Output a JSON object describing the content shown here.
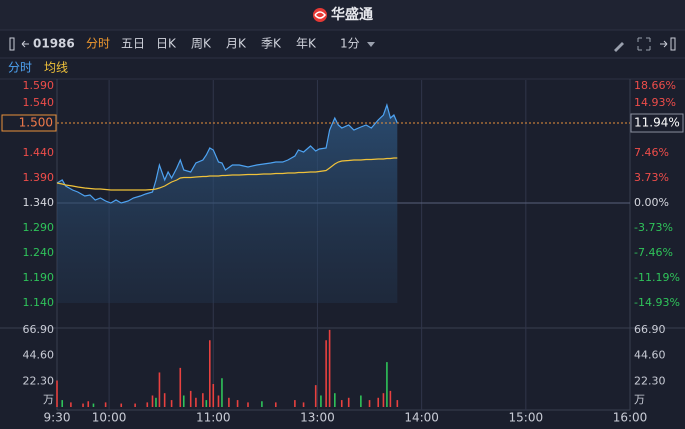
{
  "header": {
    "title": "华盛通"
  },
  "toolbar": {
    "code": "01986",
    "tabs": [
      "分时",
      "五日",
      "日K",
      "周K",
      "月K",
      "季K",
      "年K"
    ],
    "interval": "1分"
  },
  "chart_data": {
    "type": "line",
    "x": [
      0,
      3,
      5,
      9,
      12,
      16,
      19,
      22,
      25,
      28,
      31,
      34,
      37,
      41,
      44,
      48,
      51,
      55,
      57,
      59,
      62,
      64,
      66,
      69,
      71,
      73,
      77,
      80,
      84,
      86,
      88,
      90,
      93,
      95,
      97,
      101,
      105,
      110,
      115,
      119,
      123,
      126,
      130,
      133,
      137,
      139,
      142,
      146,
      149,
      151,
      155,
      157,
      160,
      162,
      164,
      168,
      171,
      175,
      178,
      181,
      185,
      188,
      190,
      192,
      194,
      196
    ],
    "series": [
      {
        "name": "分时",
        "color": "#4ea3f2",
        "values": [
          1.38,
          1.386,
          1.374,
          1.366,
          1.362,
          1.354,
          1.356,
          1.346,
          1.35,
          1.344,
          1.34,
          1.346,
          1.34,
          1.344,
          1.35,
          1.354,
          1.358,
          1.362,
          1.386,
          1.416,
          1.386,
          1.402,
          1.39,
          1.41,
          1.426,
          1.406,
          1.402,
          1.42,
          1.426,
          1.436,
          1.45,
          1.446,
          1.422,
          1.42,
          1.406,
          1.416,
          1.416,
          1.412,
          1.416,
          1.418,
          1.42,
          1.422,
          1.422,
          1.426,
          1.434,
          1.446,
          1.442,
          1.454,
          1.444,
          1.448,
          1.45,
          1.486,
          1.51,
          1.496,
          1.49,
          1.496,
          1.486,
          1.492,
          1.496,
          1.49,
          1.506,
          1.516,
          1.536,
          1.51,
          1.516,
          1.5
        ]
      },
      {
        "name": "均线",
        "color": "#f0c23a",
        "values": [
          1.38,
          1.378,
          1.376,
          1.374,
          1.372,
          1.37,
          1.369,
          1.368,
          1.368,
          1.367,
          1.366,
          1.366,
          1.366,
          1.366,
          1.366,
          1.366,
          1.366,
          1.367,
          1.368,
          1.37,
          1.374,
          1.378,
          1.382,
          1.386,
          1.39,
          1.391,
          1.391,
          1.392,
          1.393,
          1.393,
          1.394,
          1.394,
          1.394,
          1.395,
          1.395,
          1.396,
          1.396,
          1.397,
          1.397,
          1.398,
          1.398,
          1.399,
          1.399,
          1.4,
          1.4,
          1.401,
          1.401,
          1.402,
          1.402,
          1.403,
          1.405,
          1.41,
          1.418,
          1.422,
          1.424,
          1.425,
          1.426,
          1.426,
          1.427,
          1.427,
          1.428,
          1.428,
          1.429,
          1.429,
          1.43,
          1.43
        ]
      }
    ],
    "xlim": [
      0,
      330
    ],
    "xticks": [
      {
        "value": 0,
        "label": "9:30"
      },
      {
        "value": 30,
        "label": "10:00"
      },
      {
        "value": 90,
        "label": "11:00"
      },
      {
        "value": 150,
        "label": "13:00"
      },
      {
        "value": 210,
        "label": "14:00"
      },
      {
        "value": 270,
        "label": "15:00"
      },
      {
        "value": 330,
        "label": "16:00"
      }
    ],
    "ylim": [
      1.14,
      1.59
    ],
    "yticks": [
      {
        "value": 1.59,
        "label": "1.590"
      },
      {
        "value": 1.54,
        "label": "1.540"
      },
      {
        "value": 1.44,
        "label": "1.440"
      },
      {
        "value": 1.39,
        "label": "1.390"
      },
      {
        "value": 1.34,
        "label": "1.340"
      },
      {
        "value": 1.29,
        "label": "1.290"
      },
      {
        "value": 1.24,
        "label": "1.240"
      },
      {
        "value": 1.19,
        "label": "1.190"
      },
      {
        "value": 1.14,
        "label": "1.140"
      }
    ],
    "y2lim": [
      -14.93,
      18.66
    ],
    "y2ticks": [
      {
        "value": 18.66,
        "label": "18.66%"
      },
      {
        "value": 14.93,
        "label": "14.93%"
      },
      {
        "value": 7.46,
        "label": "7.46%"
      },
      {
        "value": 3.73,
        "label": "3.73%"
      },
      {
        "value": 0,
        "label": "0.00%"
      },
      {
        "value": -3.73,
        "label": "-3.73%"
      },
      {
        "value": -7.46,
        "label": "-7.46%"
      },
      {
        "value": -11.19,
        "label": "-11.19%"
      },
      {
        "value": -14.93,
        "label": "-14.93%"
      }
    ],
    "current_price": {
      "value": 1.5,
      "label": "1.500"
    },
    "current_change": {
      "value": 11.94,
      "label": "11.94%"
    },
    "volume": {
      "type": "bar",
      "unit": "万",
      "x": [
        0,
        3,
        8,
        15,
        18,
        21,
        28,
        37,
        45,
        52,
        55,
        57,
        59,
        62,
        66,
        71,
        73,
        77,
        80,
        84,
        86,
        88,
        90,
        93,
        95,
        99,
        104,
        110,
        118,
        126,
        137,
        142,
        149,
        152,
        155,
        157,
        160,
        164,
        168,
        175,
        180,
        185,
        188,
        190,
        192,
        196
      ],
      "values": [
        23,
        6,
        4,
        3,
        5,
        3,
        4,
        3,
        3,
        4,
        10,
        8,
        30,
        12,
        6,
        34,
        10,
        14,
        8,
        12,
        6,
        58,
        20,
        10,
        25,
        8,
        6,
        4,
        5,
        4,
        6,
        4,
        19,
        10,
        58,
        67,
        12,
        6,
        8,
        10,
        6,
        8,
        12,
        39,
        14,
        6
      ],
      "colors": [
        "#e8413f",
        "#2fc35a",
        "#e8413f",
        "#e8413f",
        "#e8413f",
        "#2fc35a",
        "#e8413f",
        "#e8413f",
        "#e8413f",
        "#e8413f",
        "#e8413f",
        "#2fc35a",
        "#e8413f",
        "#e8413f",
        "#e8413f",
        "#e8413f",
        "#2fc35a",
        "#e8413f",
        "#e8413f",
        "#e8413f",
        "#2fc35a",
        "#e8413f",
        "#e8413f",
        "#e8413f",
        "#2fc35a",
        "#e8413f",
        "#e8413f",
        "#e8413f",
        "#2fc35a",
        "#e8413f",
        "#e8413f",
        "#e8413f",
        "#e8413f",
        "#2fc35a",
        "#e8413f",
        "#e8413f",
        "#2fc35a",
        "#e8413f",
        "#e8413f",
        "#2fc35a",
        "#e8413f",
        "#e8413f",
        "#e8413f",
        "#2fc35a",
        "#e8413f",
        "#e8413f"
      ],
      "ylim": [
        0,
        66.9
      ],
      "yticks": [
        {
          "value": 66.9,
          "label": "66.90"
        },
        {
          "value": 44.6,
          "label": "44.60"
        },
        {
          "value": 22.3,
          "label": "22.30"
        }
      ]
    }
  }
}
